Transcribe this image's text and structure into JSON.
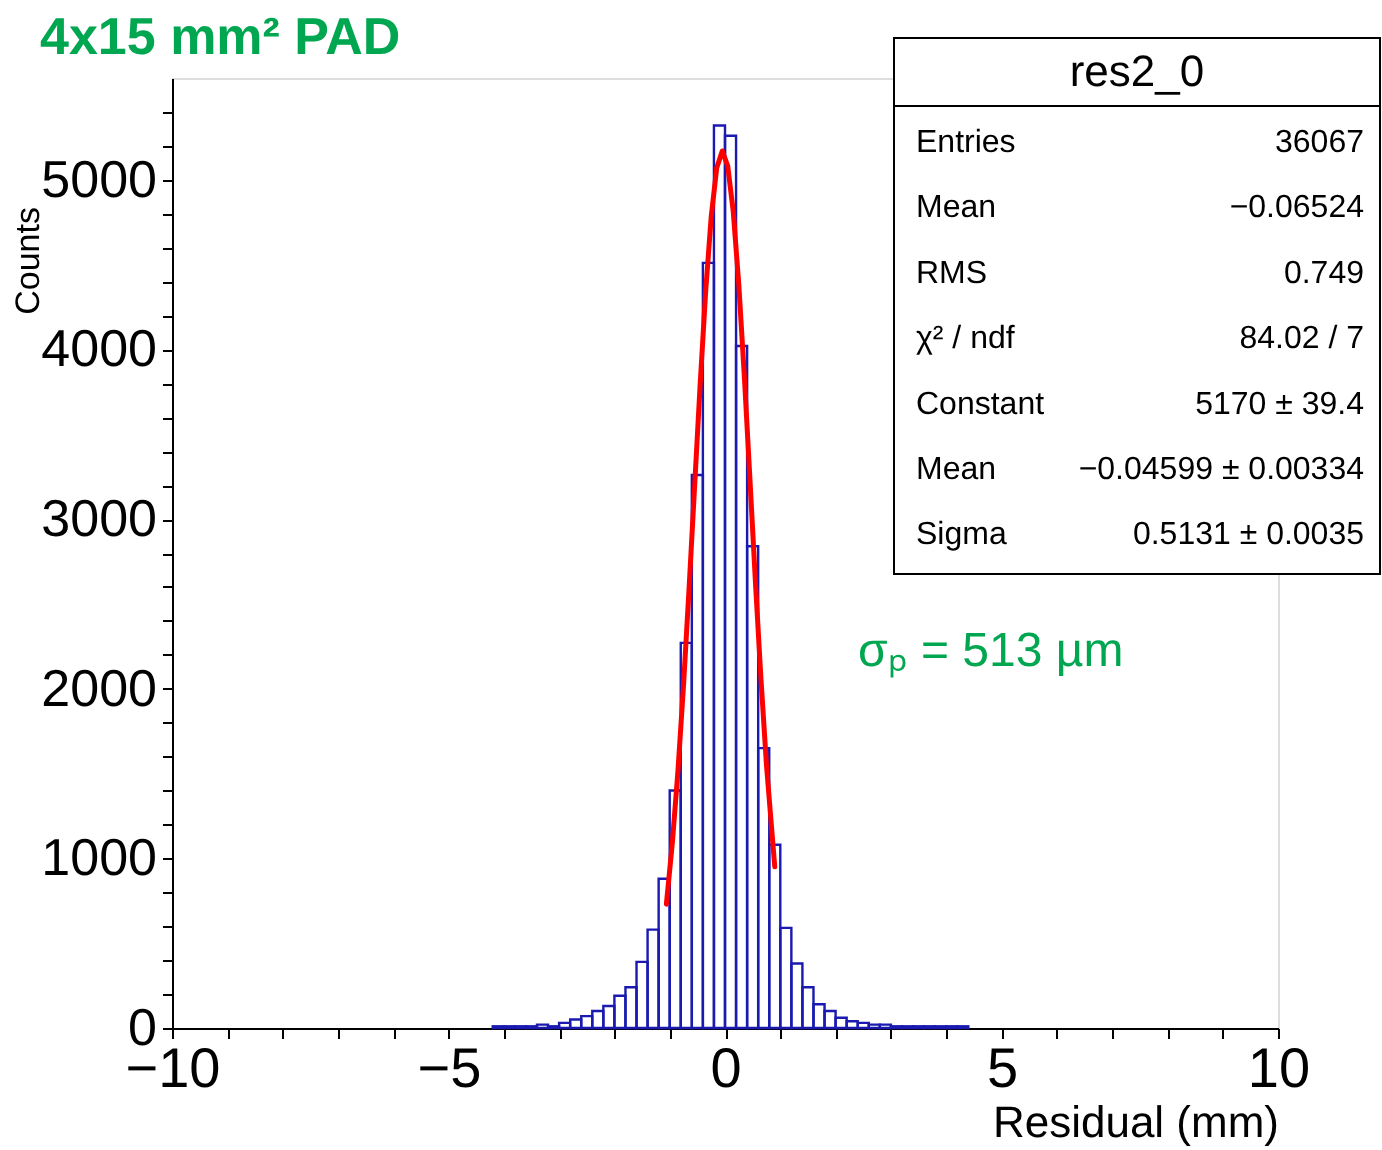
{
  "chart_data": {
    "type": "histogram",
    "title": "4x15 mm² PAD",
    "xlabel": "Residual (mm)",
    "ylabel": "Counts",
    "xlim": [
      -10,
      10
    ],
    "ylim": [
      0,
      5600
    ],
    "xticks": [
      -10,
      {
        "value": -9,
        "label": null
      },
      {
        "value": -8,
        "label": null
      },
      {
        "value": -7,
        "label": null
      },
      {
        "value": -6,
        "label": null
      },
      -5,
      {
        "value": -4,
        "label": null
      },
      {
        "value": -3,
        "label": null
      },
      {
        "value": -2,
        "label": null
      },
      {
        "value": -1,
        "label": null
      },
      0,
      {
        "value": 1,
        "label": null
      },
      {
        "value": 2,
        "label": null
      },
      {
        "value": 3,
        "label": null
      },
      {
        "value": 4,
        "label": null
      },
      5,
      {
        "value": 6,
        "label": null
      },
      {
        "value": 7,
        "label": null
      },
      {
        "value": 8,
        "label": null
      },
      {
        "value": 9,
        "label": null
      },
      10
    ],
    "yticks": [
      0,
      {
        "value": 200,
        "label": null
      },
      {
        "value": 400,
        "label": null
      },
      {
        "value": 600,
        "label": null
      },
      {
        "value": 800,
        "label": null
      },
      1000,
      {
        "value": 1200,
        "label": null
      },
      {
        "value": 1400,
        "label": null
      },
      {
        "value": 1600,
        "label": null
      },
      {
        "value": 1800,
        "label": null
      },
      2000,
      {
        "value": 2200,
        "label": null
      },
      {
        "value": 2400,
        "label": null
      },
      {
        "value": 2600,
        "label": null
      },
      {
        "value": 2800,
        "label": null
      },
      3000,
      {
        "value": 3200,
        "label": null
      },
      {
        "value": 3400,
        "label": null
      },
      {
        "value": 3600,
        "label": null
      },
      {
        "value": 3800,
        "label": null
      },
      4000,
      {
        "value": 4200,
        "label": null
      },
      {
        "value": 4400,
        "label": null
      },
      {
        "value": 4600,
        "label": null
      },
      {
        "value": 4800,
        "label": null
      },
      5000,
      {
        "value": 5200,
        "label": null
      },
      {
        "value": 5400,
        "label": null
      }
    ],
    "grid": false,
    "series": [
      {
        "type": "histogram",
        "color": "#1a1ab0",
        "bins": [
          -4.2,
          -4.0,
          -3.8,
          -3.6,
          -3.4,
          -3.2,
          -3.0,
          -2.8,
          -2.6,
          -2.4,
          -2.2,
          -2.0,
          -1.8,
          -1.6,
          -1.4,
          -1.2,
          -1.0,
          -0.8,
          -0.6,
          -0.4,
          -0.2,
          0.0,
          0.2,
          0.4,
          0.6,
          0.8,
          1.0,
          1.2,
          1.4,
          1.6,
          1.8,
          2.0,
          2.2,
          2.4,
          2.6,
          2.8,
          3.0,
          3.2,
          3.4,
          3.6,
          3.8,
          4.0,
          4.2,
          4.4
        ],
        "values": [
          10,
          10,
          10,
          10,
          20,
          10,
          30,
          50,
          70,
          100,
          130,
          190,
          240,
          390,
          580,
          880,
          1400,
          2270,
          3260,
          4510,
          5320,
          5260,
          4020,
          2840,
          1650,
          1080,
          590,
          380,
          240,
          140,
          100,
          60,
          40,
          30,
          20,
          20,
          10,
          10,
          10,
          10,
          10,
          10,
          10
        ]
      },
      {
        "type": "line",
        "color": "#ff0000",
        "x": [
          -1.06,
          -0.95,
          -0.85,
          -0.75,
          -0.65,
          -0.55,
          -0.45,
          -0.35,
          -0.25,
          -0.15,
          -0.05,
          0.05,
          0.15,
          0.25,
          0.35,
          0.45,
          0.55,
          0.65,
          0.75,
          0.9
        ],
        "values": [
          730,
          1100,
          1520,
          2020,
          2590,
          3190,
          3790,
          4340,
          4780,
          5070,
          5170,
          5080,
          4810,
          4380,
          3840,
          3240,
          2630,
          2060,
          1550,
          950
        ]
      }
    ],
    "annotations": [
      "res2_0",
      "Entries",
      "36067",
      "Mean",
      "−0.06524",
      "RMS",
      "0.749",
      "χ² / ndf",
      "84.02 / 7",
      "Constant",
      "5170 ± 39.4",
      "Mean",
      "−0.04599 ± 0.00334",
      "Sigma",
      "0.5131 ± 0.0035",
      "σₚ = 513 µm"
    ]
  }
}
